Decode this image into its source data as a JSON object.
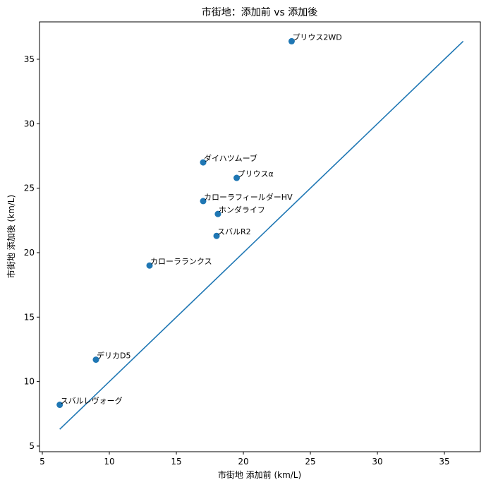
{
  "chart_data": {
    "type": "scatter",
    "title": "市街地：添加前 vs 添加後",
    "xlabel": "市街地 添加前 (km/L)",
    "ylabel": "市街地 添加後 (km/L)",
    "xlim": [
      4.79,
      37.68
    ],
    "ylim": [
      4.56,
      37.9
    ],
    "xticks": [
      5,
      10,
      15,
      20,
      25,
      30,
      35
    ],
    "yticks": [
      5,
      10,
      15,
      20,
      25,
      30,
      35
    ],
    "grid": false,
    "legend": null,
    "marker_color": "#1f77b4",
    "points": [
      {
        "label": "プリウス2WD",
        "x": 23.6,
        "y": 36.4
      },
      {
        "label": "ダイハツムーブ",
        "x": 17.0,
        "y": 27.0
      },
      {
        "label": "プリウスα",
        "x": 19.5,
        "y": 25.8
      },
      {
        "label": "カローラフィールダーHV",
        "x": 17.0,
        "y": 24.0
      },
      {
        "label": "ホンダライフ",
        "x": 18.1,
        "y": 23.0
      },
      {
        "label": "スバルR2",
        "x": 18.0,
        "y": 21.3
      },
      {
        "label": "カローラランクス",
        "x": 13.0,
        "y": 19.0
      },
      {
        "label": "デリカD5",
        "x": 9.0,
        "y": 11.7
      },
      {
        "label": "スバルレヴォーグ",
        "x": 6.3,
        "y": 8.2
      }
    ],
    "reference_line": {
      "label": "y = x",
      "from": [
        6.3,
        6.3
      ],
      "to": [
        36.4,
        36.4
      ],
      "color": "#1f77b4"
    }
  }
}
